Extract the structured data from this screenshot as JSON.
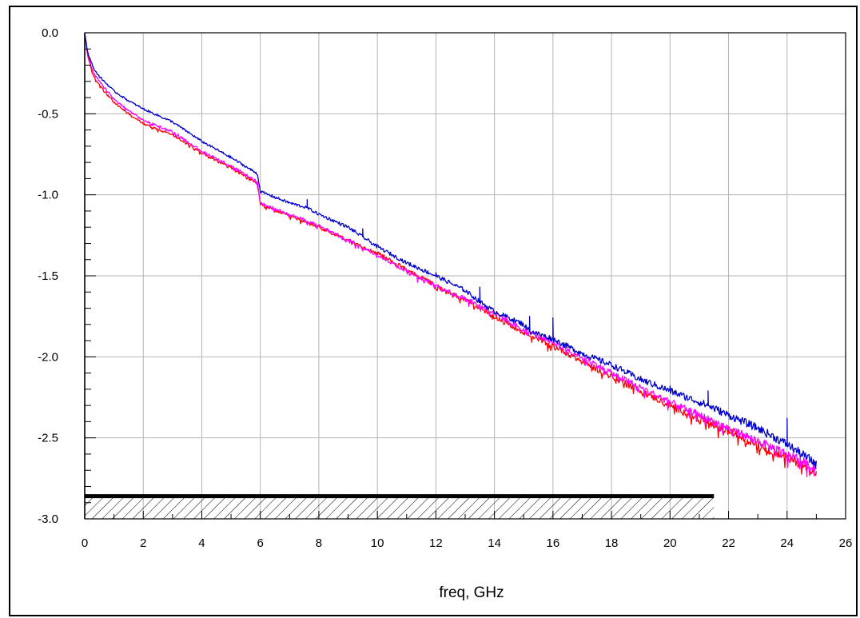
{
  "chart_data": {
    "type": "line",
    "title": "",
    "xlabel": "freq, GHz",
    "ylabel": "",
    "xlim": [
      0,
      26
    ],
    "ylim": [
      -3.0,
      0.0
    ],
    "x_ticks": [
      0,
      2,
      4,
      6,
      8,
      10,
      12,
      14,
      16,
      18,
      20,
      22,
      24,
      26
    ],
    "y_ticks": [
      0.0,
      -0.5,
      -1.0,
      -1.5,
      -2.0,
      -2.5,
      -3.0
    ],
    "x_tick_labels": [
      "0",
      "2",
      "4",
      "6",
      "8",
      "10",
      "12",
      "14",
      "16",
      "18",
      "20",
      "22",
      "24",
      "26"
    ],
    "y_tick_labels": [
      "0.0",
      "-0.5",
      "-1.0",
      "-1.5",
      "-2.0",
      "-2.5",
      "-3.0"
    ],
    "grid": true,
    "limit_line": {
      "y": -2.86,
      "x_start": 0,
      "x_end": 21.5,
      "hatched_below": true,
      "color": "#000000"
    },
    "series": [
      {
        "color": "#0000cc",
        "x": [
          0,
          0.1,
          0.3,
          0.5,
          1,
          1.5,
          2,
          3,
          4,
          5,
          5.9,
          6.0,
          7,
          7.6,
          8,
          9,
          9.5,
          10,
          11,
          12,
          13,
          13.5,
          14,
          15,
          15.2,
          16,
          17,
          18,
          19,
          20,
          21,
          21.3,
          22,
          23,
          24,
          24.5,
          25
        ],
        "y": [
          0,
          -0.12,
          -0.22,
          -0.27,
          -0.36,
          -0.42,
          -0.47,
          -0.55,
          -0.67,
          -0.77,
          -0.87,
          -0.98,
          -1.05,
          -1.08,
          -1.12,
          -1.2,
          -1.26,
          -1.32,
          -1.42,
          -1.5,
          -1.59,
          -1.66,
          -1.72,
          -1.8,
          -1.84,
          -1.89,
          -1.98,
          -2.05,
          -2.14,
          -2.21,
          -2.28,
          -2.3,
          -2.36,
          -2.44,
          -2.54,
          -2.6,
          -2.66
        ],
        "spikes": [
          [
            7.6,
            -1.03
          ],
          [
            9.5,
            -1.21
          ],
          [
            12.0,
            -1.48
          ],
          [
            13.5,
            -1.57
          ],
          [
            15.2,
            -1.75
          ],
          [
            16.0,
            -1.76
          ],
          [
            20.0,
            -2.18
          ],
          [
            21.3,
            -2.21
          ],
          [
            24.0,
            -2.38
          ]
        ]
      },
      {
        "color": "#ff0000",
        "x": [
          0,
          0.1,
          0.3,
          0.5,
          1,
          1.5,
          2,
          3,
          4,
          5,
          5.9,
          6.0,
          7,
          8,
          9,
          10,
          11,
          12,
          13,
          14,
          15,
          16,
          17,
          18,
          19,
          20,
          21,
          22,
          23,
          24,
          25
        ],
        "y": [
          0,
          -0.14,
          -0.27,
          -0.32,
          -0.43,
          -0.5,
          -0.56,
          -0.63,
          -0.74,
          -0.83,
          -0.93,
          -1.06,
          -1.13,
          -1.2,
          -1.28,
          -1.36,
          -1.46,
          -1.56,
          -1.65,
          -1.75,
          -1.85,
          -1.93,
          -2.03,
          -2.12,
          -2.21,
          -2.3,
          -2.38,
          -2.46,
          -2.54,
          -2.62,
          -2.71
        ]
      },
      {
        "color": "#ff00ff",
        "x": [
          0,
          0.1,
          0.3,
          0.5,
          1,
          1.5,
          2,
          3,
          4,
          5,
          5.9,
          6.0,
          7,
          8,
          9,
          10,
          11,
          12,
          13,
          14,
          15,
          16,
          17,
          18,
          19,
          20,
          21,
          22,
          23,
          24,
          25
        ],
        "y": [
          0,
          -0.13,
          -0.25,
          -0.3,
          -0.41,
          -0.48,
          -0.54,
          -0.61,
          -0.73,
          -0.82,
          -0.92,
          -1.05,
          -1.12,
          -1.19,
          -1.28,
          -1.37,
          -1.47,
          -1.56,
          -1.64,
          -1.73,
          -1.83,
          -1.91,
          -2.0,
          -2.1,
          -2.19,
          -2.28,
          -2.36,
          -2.44,
          -2.52,
          -2.6,
          -2.68
        ]
      }
    ]
  }
}
